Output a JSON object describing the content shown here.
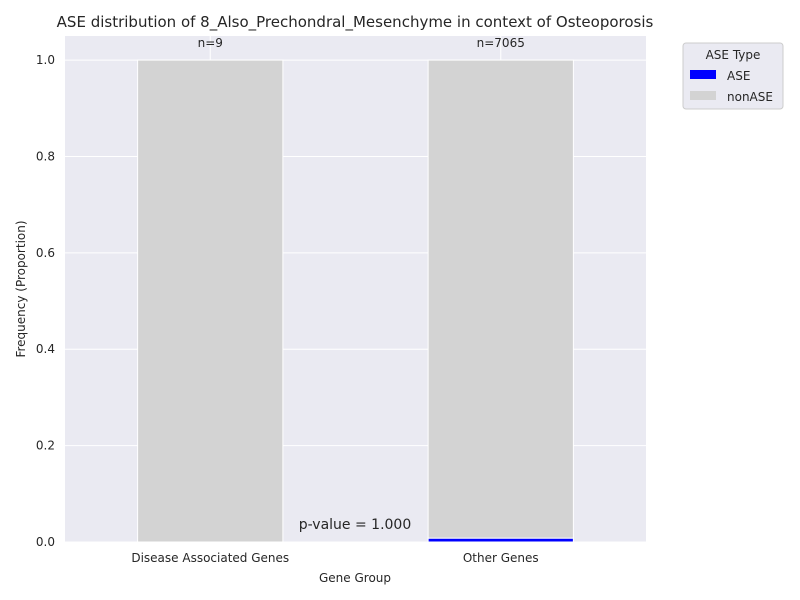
{
  "chart_data": {
    "type": "bar",
    "stacked": true,
    "title": "ASE distribution of 8_Also_Prechondral_Mesenchyme in context of Osteoporosis",
    "xlabel": "Gene Group",
    "ylabel": "Frequency (Proportion)",
    "categories": [
      "Disease Associated Genes",
      "Other Genes"
    ],
    "series": [
      {
        "name": "ASE",
        "color": "#0000ff",
        "values": [
          0.0,
          0.008
        ]
      },
      {
        "name": "nonASE",
        "color": "#d3d3d3",
        "values": [
          1.0,
          0.992
        ]
      }
    ],
    "counts": [
      "n=9",
      "n=7065"
    ],
    "annotation": "p-value = 1.000",
    "ylim": [
      0,
      1.05
    ],
    "yticks": [
      "0.0",
      "0.2",
      "0.4",
      "0.6",
      "0.8",
      "1.0"
    ],
    "grid": true,
    "legend": {
      "title": "ASE Type",
      "placement": "outside-top-right"
    },
    "plot_background": "#eaeaf2"
  }
}
